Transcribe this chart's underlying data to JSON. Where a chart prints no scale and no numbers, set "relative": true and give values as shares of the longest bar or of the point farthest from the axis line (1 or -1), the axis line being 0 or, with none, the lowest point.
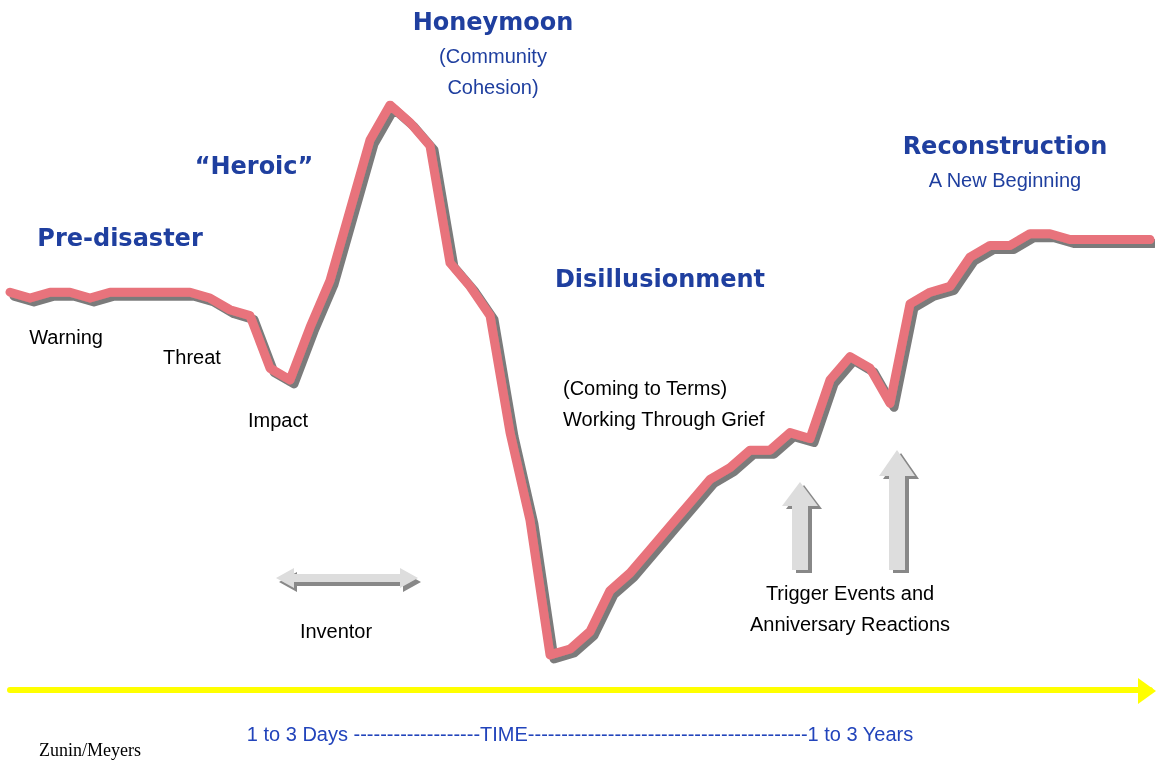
{
  "chart_data": {
    "type": "line",
    "relative": true,
    "xlabel": "1 to 3 Days -------------------TIME------------------------------------------1 to 3 Years",
    "categories": [
      null,
      null,
      null,
      null,
      null,
      null,
      null,
      null,
      null,
      null,
      null,
      null,
      null,
      null,
      null,
      null,
      null,
      null,
      null,
      null,
      null,
      null,
      null,
      null,
      null,
      null,
      null,
      null,
      null,
      null,
      null,
      null,
      null,
      null,
      null,
      null,
      null,
      null,
      null,
      null,
      null,
      null,
      null,
      null,
      null,
      null,
      null,
      null,
      null,
      null,
      null,
      null,
      null,
      null,
      null,
      null,
      null,
      null
    ],
    "series": [
      {
        "color": "#e8737b",
        "values": [
          0.68,
          0.67,
          0.68,
          0.68,
          0.67,
          0.68,
          0.68,
          0.68,
          0.68,
          0.68,
          0.67,
          0.65,
          0.64,
          0.55,
          0.53,
          0.62,
          0.7,
          0.82,
          0.94,
          1,
          0.97,
          0.93,
          0.73,
          0.69,
          0.64,
          0.44,
          0.29,
          0.06,
          0.07,
          0.1,
          0.17,
          0.2,
          0.24,
          0.28,
          0.32,
          0.36,
          0.38,
          0.41,
          0.41,
          0.44,
          0.43,
          0.53,
          0.57,
          0.55,
          0.49,
          0.66,
          0.68,
          0.69,
          0.74,
          0.76,
          0.76,
          0.78,
          0.78,
          0.77,
          0.77,
          0.77,
          0.77,
          0.77
        ]
      }
    ],
    "annotations": [
      "Pre-disaster",
      "Warning",
      "Threat",
      "Impact",
      "“Heroic”",
      "Honeymoon",
      "(Community\nCohesion)",
      "Disillusionment",
      "(Coming to Terms)\nWorking Through Grief",
      "Reconstruction",
      "A New Beginning",
      "Inventor",
      "Trigger Events and\nAnniversary Reactions",
      "Zunin/Meyers"
    ]
  }
}
